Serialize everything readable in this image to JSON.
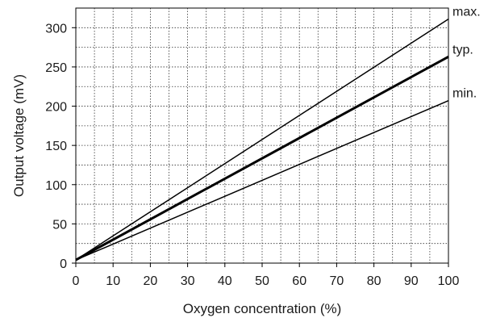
{
  "chart_data": {
    "type": "line",
    "xlabel": "Oxygen concentration (%)",
    "ylabel": "Output voltage (mV)",
    "xlim": [
      0,
      100
    ],
    "ylim": [
      0,
      325
    ],
    "xticks": [
      0,
      10,
      20,
      30,
      40,
      50,
      60,
      70,
      80,
      90,
      100
    ],
    "yticks": [
      0,
      50,
      100,
      150,
      200,
      250,
      300
    ],
    "x_minor_step": 5,
    "y_minor_step": 25,
    "grid": true,
    "grid_style": "dotted minor and major gridlines",
    "series": [
      {
        "name": "max.",
        "x": [
          0,
          100
        ],
        "y": [
          4,
          311
        ],
        "weight": "thin",
        "color": "#000000"
      },
      {
        "name": "typ.",
        "x": [
          0,
          100
        ],
        "y": [
          4,
          263
        ],
        "weight": "bold",
        "color": "#000000"
      },
      {
        "name": "min.",
        "x": [
          0,
          100
        ],
        "y": [
          4,
          207
        ],
        "weight": "thin",
        "color": "#000000"
      }
    ]
  }
}
